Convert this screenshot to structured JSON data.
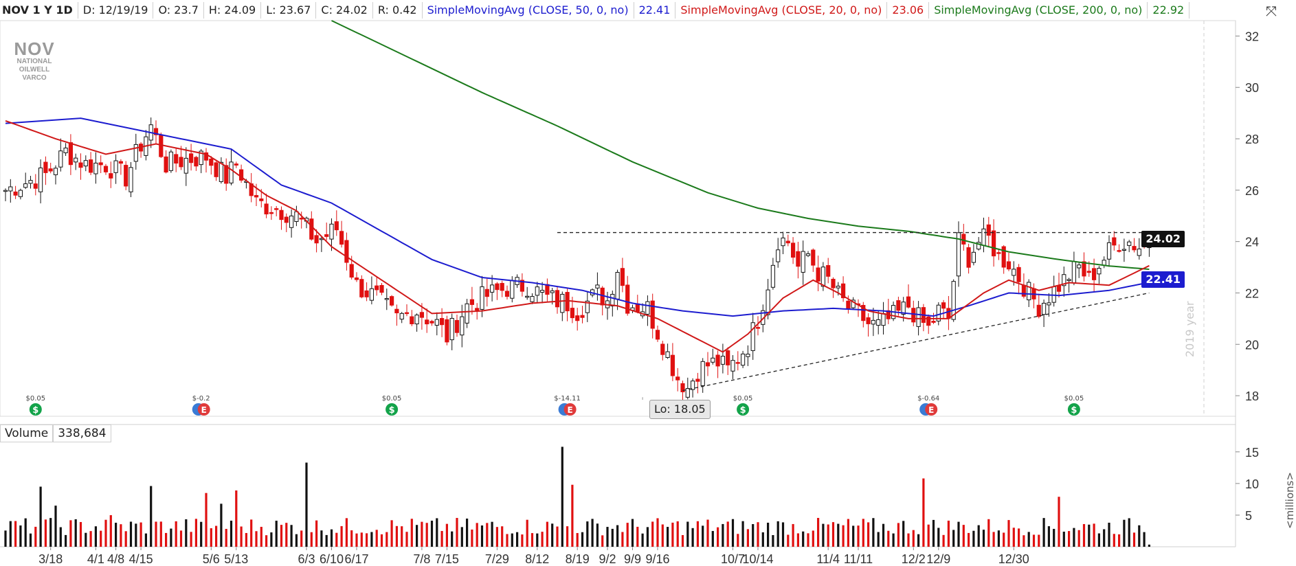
{
  "header": {
    "symbol": "NOV 1 Y 1D",
    "date": "D: 12/19/19",
    "open": "O: 23.7",
    "high": "H: 24.09",
    "low": "L: 23.67",
    "close": "C: 24.02",
    "range": "R: 0.42",
    "sma50_label": "SimpleMovingAvg (CLOSE, 50, 0, no)",
    "sma50_value": "22.41",
    "sma20_label": "SimpleMovingAvg (CLOSE, 20, 0, no)",
    "sma20_value": "23.06",
    "sma200_label": "SimpleMovingAvg (CLOSE, 200, 0, no)",
    "sma200_value": "22.92"
  },
  "logo": {
    "mark": "NOV",
    "name": "NATIONAL OILWELL VARCO"
  },
  "price_tags": {
    "last": "24.02",
    "sma50": "22.41"
  },
  "low_marker": "Lo: 18.05",
  "watermark": "2019 year",
  "volume_panel": {
    "label": "Volume",
    "value": "338,684",
    "unit": "<millions>"
  },
  "colors": {
    "up": "#111111",
    "down": "#e01010",
    "sma50": "#1c1ccf",
    "sma20": "#d01818",
    "sma200": "#1b7a1b"
  },
  "chart_data": {
    "type": "candlestick",
    "price_axis": {
      "ticks": [
        18,
        20,
        22,
        24,
        26,
        28,
        30,
        32
      ],
      "range": [
        17.2,
        32.6
      ]
    },
    "volume_axis": {
      "ticks": [
        5,
        10,
        15
      ],
      "range": [
        0,
        16.5
      ],
      "unit": "millions"
    },
    "date_axis": {
      "labels": [
        "3/18",
        "4/1",
        "4/8",
        "4/15",
        "5/6",
        "5/13",
        "6/3",
        "6/10",
        "6/17",
        "7/8",
        "7/15",
        "7/29",
        "8/12",
        "8/19",
        "9/2",
        "9/9",
        "9/16",
        "10/7",
        "10/14",
        "11/4",
        "11/11",
        "12/2",
        "12/9",
        "12/30"
      ]
    },
    "price_anchors": [
      [
        0,
        26.0
      ],
      [
        8,
        26.6
      ],
      [
        12,
        27.5
      ],
      [
        16,
        27.0
      ],
      [
        20,
        27.0
      ],
      [
        24,
        26.5
      ],
      [
        27,
        27.8
      ],
      [
        29,
        28.5
      ],
      [
        32,
        27.0
      ],
      [
        36,
        27.2
      ],
      [
        40,
        27.3
      ],
      [
        44,
        26.5
      ],
      [
        46,
        27.0
      ],
      [
        50,
        25.5
      ],
      [
        54,
        25.3
      ],
      [
        58,
        25.0
      ],
      [
        62,
        24.0
      ],
      [
        66,
        24.5
      ],
      [
        70,
        22.3
      ],
      [
        74,
        21.8
      ],
      [
        78,
        21.0
      ],
      [
        82,
        21.3
      ],
      [
        86,
        20.8
      ],
      [
        88,
        20.3
      ],
      [
        92,
        21.5
      ],
      [
        96,
        21.9
      ],
      [
        100,
        22.2
      ],
      [
        104,
        22.3
      ],
      [
        108,
        21.8
      ],
      [
        112,
        21.6
      ],
      [
        114,
        21.3
      ],
      [
        118,
        22.0
      ],
      [
        120,
        21.7
      ],
      [
        122,
        23.0
      ],
      [
        124,
        21.6
      ],
      [
        128,
        21.4
      ],
      [
        130,
        20.5
      ],
      [
        132,
        19.6
      ],
      [
        134,
        18.7
      ],
      [
        136,
        18.3
      ],
      [
        138,
        19.0
      ],
      [
        140,
        19.2
      ],
      [
        142,
        19.3
      ],
      [
        144,
        19.0
      ],
      [
        146,
        19.5
      ],
      [
        148,
        20.0
      ],
      [
        150,
        21.0
      ],
      [
        152,
        22.4
      ],
      [
        154,
        24.1
      ],
      [
        156,
        24.0
      ],
      [
        158,
        23.0
      ],
      [
        160,
        23.5
      ],
      [
        162,
        22.8
      ],
      [
        164,
        22.5
      ],
      [
        166,
        21.9
      ],
      [
        168,
        21.4
      ],
      [
        170,
        21.2
      ],
      [
        172,
        20.8
      ],
      [
        174,
        20.7
      ],
      [
        178,
        21.2
      ],
      [
        180,
        21.5
      ],
      [
        182,
        21.0
      ],
      [
        184,
        20.6
      ],
      [
        186,
        21.3
      ],
      [
        188,
        21.0
      ],
      [
        190,
        24.0
      ],
      [
        192,
        23.4
      ],
      [
        194,
        24.0
      ],
      [
        196,
        24.1
      ],
      [
        198,
        23.4
      ],
      [
        200,
        23.2
      ],
      [
        202,
        22.6
      ],
      [
        204,
        22.0
      ],
      [
        206,
        21.5
      ],
      [
        208,
        21.9
      ],
      [
        210,
        22.3
      ],
      [
        212,
        22.7
      ],
      [
        214,
        23.0
      ],
      [
        216,
        22.5
      ],
      [
        218,
        23.1
      ],
      [
        220,
        23.6
      ],
      [
        222,
        24.0
      ],
      [
        224,
        24.0
      ],
      [
        226,
        23.8
      ],
      [
        228,
        24.0
      ]
    ],
    "sma50_anchors": [
      [
        0,
        28.6
      ],
      [
        15,
        28.8
      ],
      [
        30,
        28.2
      ],
      [
        45,
        27.6
      ],
      [
        55,
        26.2
      ],
      [
        65,
        25.5
      ],
      [
        75,
        24.4
      ],
      [
        85,
        23.3
      ],
      [
        95,
        22.6
      ],
      [
        105,
        22.4
      ],
      [
        115,
        22.1
      ],
      [
        125,
        21.6
      ],
      [
        135,
        21.3
      ],
      [
        145,
        21.1
      ],
      [
        155,
        21.3
      ],
      [
        165,
        21.4
      ],
      [
        175,
        21.3
      ],
      [
        185,
        21.1
      ],
      [
        192,
        21.5
      ],
      [
        200,
        22.0
      ],
      [
        210,
        21.9
      ],
      [
        220,
        22.1
      ],
      [
        228,
        22.41
      ]
    ],
    "sma20_anchors": [
      [
        0,
        28.7
      ],
      [
        10,
        28.0
      ],
      [
        20,
        27.4
      ],
      [
        30,
        27.8
      ],
      [
        40,
        27.4
      ],
      [
        45,
        26.8
      ],
      [
        52,
        25.8
      ],
      [
        58,
        25.2
      ],
      [
        65,
        23.8
      ],
      [
        75,
        22.5
      ],
      [
        85,
        21.2
      ],
      [
        95,
        21.3
      ],
      [
        105,
        21.6
      ],
      [
        112,
        21.7
      ],
      [
        122,
        21.5
      ],
      [
        130,
        21.0
      ],
      [
        138,
        20.2
      ],
      [
        143,
        19.7
      ],
      [
        148,
        20.4
      ],
      [
        155,
        21.8
      ],
      [
        161,
        22.5
      ],
      [
        166,
        22.0
      ],
      [
        172,
        21.3
      ],
      [
        180,
        21.0
      ],
      [
        188,
        21.0
      ],
      [
        195,
        22.0
      ],
      [
        200,
        22.5
      ],
      [
        206,
        22.1
      ],
      [
        212,
        22.4
      ],
      [
        220,
        22.3
      ],
      [
        228,
        23.06
      ]
    ],
    "sma200_anchors": [
      [
        65,
        32.6
      ],
      [
        80,
        31.2
      ],
      [
        95,
        29.8
      ],
      [
        110,
        28.5
      ],
      [
        125,
        27.1
      ],
      [
        140,
        25.9
      ],
      [
        150,
        25.3
      ],
      [
        160,
        24.9
      ],
      [
        170,
        24.6
      ],
      [
        180,
        24.4
      ],
      [
        190,
        24.1
      ],
      [
        200,
        23.6
      ],
      [
        210,
        23.3
      ],
      [
        220,
        23.05
      ],
      [
        228,
        22.92
      ]
    ],
    "resistance": {
      "from": [
        110,
        24.35
      ],
      "to": [
        228,
        24.35
      ]
    },
    "support": {
      "from": [
        135,
        18.2
      ],
      "to": [
        228,
        22.0
      ]
    },
    "low_point": {
      "bar": 127,
      "value": 18.05
    },
    "dividends": [
      {
        "bar": 6,
        "label": "$0.05",
        "type": "dividend"
      },
      {
        "bar": 39,
        "label": "$-0.2",
        "type": "earnings"
      },
      {
        "bar": 77,
        "label": "$0.05",
        "type": "dividend"
      },
      {
        "bar": 112,
        "label": "$-14.11",
        "type": "earnings"
      },
      {
        "bar": 147,
        "label": "$0.05",
        "type": "dividend"
      },
      {
        "bar": 184,
        "label": "$-0.64",
        "type": "earnings"
      },
      {
        "bar": 213,
        "label": "$0.05",
        "type": "dividend"
      }
    ],
    "volume_spikes": [
      [
        7,
        9.5
      ],
      [
        10,
        6.5
      ],
      [
        21,
        5.0
      ],
      [
        29,
        9.6
      ],
      [
        40,
        8.5
      ],
      [
        43,
        6.8
      ],
      [
        46,
        8.9
      ],
      [
        60,
        13.3
      ],
      [
        111,
        15.8
      ],
      [
        113,
        9.8
      ],
      [
        183,
        10.8
      ],
      [
        210,
        7.9
      ]
    ]
  }
}
